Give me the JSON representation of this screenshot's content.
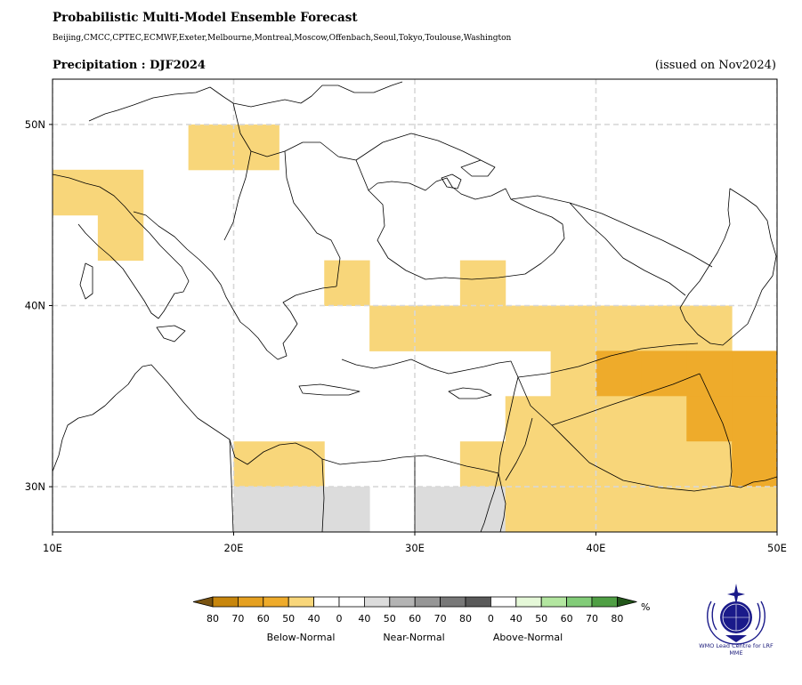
{
  "header": {
    "title": "Probabilistic Multi-Model Ensemble Forecast",
    "subtitle": "Beijing,CMCC,CPTEC,ECMWF,Exeter,Melbourne,Montreal,Moscow,Offenbach,Seoul,Tokyo,Toulouse,Washington",
    "variable_title": "Precipitation : DJF2024",
    "issued": "(issued on Nov2024)"
  },
  "map": {
    "lon_range": [
      10,
      50
    ],
    "lat_range": [
      27.5,
      52.5
    ],
    "x_ticks": [
      {
        "lon": 10,
        "label": "10E"
      },
      {
        "lon": 20,
        "label": "20E"
      },
      {
        "lon": 30,
        "label": "30E"
      },
      {
        "lon": 40,
        "label": "40E"
      },
      {
        "lon": 50,
        "label": "50E"
      }
    ],
    "y_ticks": [
      {
        "lat": 50,
        "label": "50N"
      },
      {
        "lat": 40,
        "label": "40N"
      },
      {
        "lat": 30,
        "label": "30N"
      }
    ],
    "grid": true,
    "cell_size_deg": 2.5,
    "cells": [
      {
        "lon": 17.5,
        "lat": 47.5,
        "cat": "below_40"
      },
      {
        "lon": 20.0,
        "lat": 47.5,
        "cat": "below_40"
      },
      {
        "lon": 10.0,
        "lat": 45.0,
        "cat": "below_40"
      },
      {
        "lon": 12.5,
        "lat": 45.0,
        "cat": "below_40"
      },
      {
        "lon": 12.5,
        "lat": 42.5,
        "cat": "below_40"
      },
      {
        "lon": 25.0,
        "lat": 40.0,
        "cat": "below_40"
      },
      {
        "lon": 32.5,
        "lat": 40.0,
        "cat": "below_40"
      },
      {
        "lon": 27.5,
        "lat": 37.5,
        "cat": "below_40"
      },
      {
        "lon": 30.0,
        "lat": 37.5,
        "cat": "below_40"
      },
      {
        "lon": 32.5,
        "lat": 37.5,
        "cat": "below_40"
      },
      {
        "lon": 35.0,
        "lat": 37.5,
        "cat": "below_40"
      },
      {
        "lon": 37.5,
        "lat": 37.5,
        "cat": "below_40"
      },
      {
        "lon": 40.0,
        "lat": 37.5,
        "cat": "below_40"
      },
      {
        "lon": 42.5,
        "lat": 37.5,
        "cat": "below_40"
      },
      {
        "lon": 45.0,
        "lat": 37.5,
        "cat": "below_40"
      },
      {
        "lon": 37.5,
        "lat": 35.0,
        "cat": "below_40"
      },
      {
        "lon": 40.0,
        "lat": 35.0,
        "cat": "below_50"
      },
      {
        "lon": 42.5,
        "lat": 35.0,
        "cat": "below_50"
      },
      {
        "lon": 45.0,
        "lat": 35.0,
        "cat": "below_50"
      },
      {
        "lon": 47.5,
        "lat": 35.0,
        "cat": "below_50"
      },
      {
        "lon": 35.0,
        "lat": 32.5,
        "cat": "below_40"
      },
      {
        "lon": 37.5,
        "lat": 32.5,
        "cat": "below_40"
      },
      {
        "lon": 40.0,
        "lat": 32.5,
        "cat": "below_40"
      },
      {
        "lon": 42.5,
        "lat": 32.5,
        "cat": "below_40"
      },
      {
        "lon": 45.0,
        "lat": 32.5,
        "cat": "below_50"
      },
      {
        "lon": 47.5,
        "lat": 32.5,
        "cat": "below_50"
      },
      {
        "lon": 20.0,
        "lat": 30.0,
        "cat": "below_40"
      },
      {
        "lon": 22.5,
        "lat": 30.0,
        "cat": "below_40"
      },
      {
        "lon": 32.5,
        "lat": 30.0,
        "cat": "below_40"
      },
      {
        "lon": 35.0,
        "lat": 30.0,
        "cat": "below_40"
      },
      {
        "lon": 37.5,
        "lat": 30.0,
        "cat": "below_40"
      },
      {
        "lon": 40.0,
        "lat": 30.0,
        "cat": "below_40"
      },
      {
        "lon": 42.5,
        "lat": 30.0,
        "cat": "below_40"
      },
      {
        "lon": 45.0,
        "lat": 30.0,
        "cat": "below_40"
      },
      {
        "lon": 47.5,
        "lat": 30.0,
        "cat": "below_50"
      },
      {
        "lon": 20.0,
        "lat": 27.5,
        "cat": "near_40"
      },
      {
        "lon": 22.5,
        "lat": 27.5,
        "cat": "near_40"
      },
      {
        "lon": 25.0,
        "lat": 27.5,
        "cat": "near_40"
      },
      {
        "lon": 30.0,
        "lat": 27.5,
        "cat": "near_40"
      },
      {
        "lon": 32.5,
        "lat": 27.5,
        "cat": "near_40"
      },
      {
        "lon": 35.0,
        "lat": 27.5,
        "cat": "below_40"
      },
      {
        "lon": 37.5,
        "lat": 27.5,
        "cat": "below_40"
      },
      {
        "lon": 40.0,
        "lat": 27.5,
        "cat": "below_40"
      },
      {
        "lon": 42.5,
        "lat": 27.5,
        "cat": "below_40"
      },
      {
        "lon": 45.0,
        "lat": 27.5,
        "cat": "below_40"
      },
      {
        "lon": 47.5,
        "lat": 27.5,
        "cat": "below_40"
      }
    ]
  },
  "colors": {
    "below_80": "#7a5412",
    "below_70": "#c8860c",
    "below_60": "#e5a020",
    "below_50": "#eeab2b",
    "below_40": "#f8d67a",
    "near_40": "#dcdcdc",
    "near_50": "#b4b4b4",
    "near_60": "#969696",
    "near_70": "#787878",
    "near_80": "#5a5a5a",
    "above_40": "#e5f8d8",
    "above_50": "#b3e6a0",
    "above_60": "#82cc78",
    "above_70": "#4f9f44",
    "above_80": "#22561a",
    "white": "#ffffff",
    "grid": "#d8d8d8",
    "coast": "#000000"
  },
  "legend": {
    "unit": "%",
    "tick_labels": [
      "80",
      "70",
      "60",
      "50",
      "40",
      "0",
      "40",
      "50",
      "60",
      "70",
      "80",
      "0",
      "40",
      "50",
      "60",
      "70",
      "80"
    ],
    "categories": [
      "Below-Normal",
      "Near-Normal",
      "Above-Normal"
    ],
    "boxes": [
      "below_70",
      "below_60",
      "below_50",
      "below_40",
      "white",
      "white",
      "near_40",
      "near_50",
      "near_60",
      "near_70",
      "near_80",
      "white",
      "above_40",
      "above_50",
      "above_60",
      "above_70"
    ],
    "left_arrow": "below_80",
    "right_arrow": "above_80"
  },
  "logo": {
    "icon": "wmo-emblem-icon",
    "caption": "WMO Lead Centre for LRF MME"
  }
}
